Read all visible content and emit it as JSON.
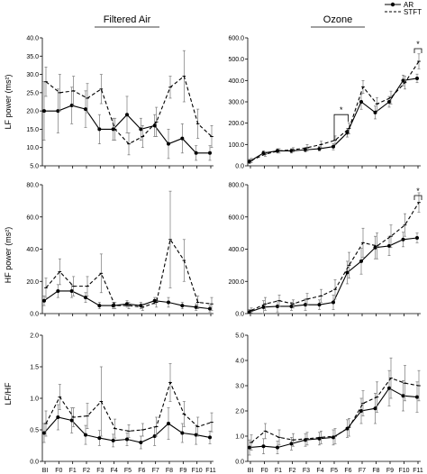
{
  "figure": {
    "col_titles": [
      "Filtered Air",
      "Ozone"
    ],
    "row_labels": [
      "LF power (ms²)",
      "HF power (ms²)",
      "LF/HF"
    ],
    "legend": {
      "ar_label": "AR",
      "stft_label": "STFT"
    },
    "significance_mark": "*"
  },
  "chart_data": [
    {
      "type": "line",
      "panel": "LF power - Filtered Air",
      "title": "Filtered Air",
      "ylabel": "LF power (ms²)",
      "xlabel": "",
      "categories": [
        "BI",
        "F0",
        "F1",
        "F2",
        "F3",
        "F4",
        "F5",
        "F6",
        "F7",
        "F8",
        "F9",
        "F10",
        "F11"
      ],
      "ylim": [
        5,
        40
      ],
      "yticks": [
        "5.0",
        "10.0",
        "15.0",
        "20.0",
        "25.0",
        "30.0",
        "35.0",
        "40.0"
      ],
      "series": [
        {
          "name": "AR",
          "style": "solid",
          "values": [
            20,
            20,
            21.5,
            20.5,
            15,
            15,
            19,
            15,
            16,
            11,
            12.5,
            8.5,
            8.5
          ],
          "err": [
            8,
            6,
            5,
            5,
            4,
            3,
            5,
            3,
            3,
            4,
            4,
            2,
            2
          ]
        },
        {
          "name": "STFT",
          "style": "dashed",
          "values": [
            28,
            25,
            25.5,
            23.5,
            26,
            15,
            11,
            13,
            17,
            26.5,
            29.5,
            16.5,
            13
          ],
          "err": [
            4,
            5,
            4,
            4,
            4,
            3,
            3,
            3,
            4,
            3,
            7,
            4,
            3
          ]
        }
      ]
    },
    {
      "type": "line",
      "panel": "LF power - Ozone",
      "title": "Ozone",
      "ylabel": "",
      "xlabel": "",
      "categories": [
        "BI",
        "F0",
        "F1",
        "F2",
        "F3",
        "F4",
        "F5",
        "F6",
        "F7",
        "F8",
        "F9",
        "F10",
        "F11"
      ],
      "ylim": [
        0,
        600
      ],
      "yticks": [
        "0.0",
        "100.0",
        "200.0",
        "300.0",
        "400.0",
        "500.0",
        "600.0"
      ],
      "series": [
        {
          "name": "AR",
          "style": "solid",
          "values": [
            20,
            60,
            70,
            70,
            75,
            80,
            90,
            155,
            300,
            250,
            300,
            400,
            410
          ],
          "err": [
            10,
            10,
            10,
            10,
            10,
            10,
            15,
            20,
            35,
            30,
            25,
            25,
            20
          ]
        },
        {
          "name": "STFT",
          "style": "dashed",
          "values": [
            25,
            55,
            70,
            75,
            85,
            100,
            120,
            175,
            370,
            290,
            320,
            390,
            490
          ],
          "err": [
            10,
            10,
            10,
            10,
            15,
            15,
            20,
            25,
            30,
            30,
            30,
            30,
            35
          ]
        }
      ],
      "annotations": [
        {
          "text": "*",
          "between": [
            "F5",
            "F6"
          ]
        },
        {
          "text": "*",
          "at": "F11"
        }
      ]
    },
    {
      "type": "line",
      "panel": "HF power - Filtered Air",
      "title": "",
      "ylabel": "HF power (ms²)",
      "xlabel": "",
      "categories": [
        "BI",
        "F0",
        "F1",
        "F2",
        "F3",
        "F4",
        "F5",
        "F6",
        "F7",
        "F8",
        "F9",
        "F10",
        "F11"
      ],
      "ylim": [
        0,
        80
      ],
      "yticks": [
        "0.0",
        "20.0",
        "40.0",
        "60.0",
        "80.0"
      ],
      "series": [
        {
          "name": "AR",
          "style": "solid",
          "values": [
            8,
            14,
            14,
            10,
            5,
            5,
            6,
            5,
            8,
            7,
            5,
            4,
            3
          ],
          "err": [
            3,
            4,
            4,
            3,
            2,
            2,
            2,
            2,
            2,
            3,
            2,
            2,
            2
          ]
        },
        {
          "name": "STFT",
          "style": "dashed",
          "values": [
            16,
            26,
            17,
            17,
            25,
            5,
            5,
            4,
            7,
            46,
            33,
            7,
            6
          ],
          "err": [
            6,
            8,
            6,
            6,
            12,
            2,
            2,
            2,
            3,
            30,
            13,
            4,
            4
          ]
        }
      ]
    },
    {
      "type": "line",
      "panel": "HF power - Ozone",
      "title": "",
      "ylabel": "",
      "xlabel": "",
      "categories": [
        "BI",
        "F0",
        "F1",
        "F2",
        "F3",
        "F4",
        "F5",
        "F6",
        "F7",
        "F8",
        "F9",
        "F10",
        "F11"
      ],
      "ylim": [
        0,
        800
      ],
      "yticks": [
        "0.0",
        "200.0",
        "400.0",
        "600.0",
        "800.0"
      ],
      "series": [
        {
          "name": "AR",
          "style": "solid",
          "values": [
            10,
            40,
            45,
            45,
            55,
            55,
            70,
            255,
            325,
            410,
            420,
            460,
            470
          ],
          "err": [
            15,
            40,
            35,
            25,
            35,
            30,
            45,
            70,
            80,
            70,
            60,
            45,
            30
          ]
        },
        {
          "name": "STFT",
          "style": "dashed",
          "values": [
            20,
            60,
            80,
            60,
            90,
            110,
            150,
            300,
            440,
            420,
            480,
            550,
            690
          ],
          "err": [
            15,
            40,
            35,
            25,
            35,
            40,
            60,
            80,
            90,
            80,
            70,
            70,
            60
          ]
        }
      ],
      "annotations": [
        {
          "text": "*",
          "at": "F11"
        }
      ]
    },
    {
      "type": "line",
      "panel": "LF/HF - Filtered Air",
      "title": "",
      "ylabel": "LF/HF",
      "xlabel": "",
      "categories": [
        "BI",
        "F0",
        "F1",
        "F2",
        "F3",
        "F4",
        "F5",
        "F6",
        "F7",
        "F8",
        "F9",
        "F10",
        "F11"
      ],
      "ylim": [
        0,
        2.0
      ],
      "yticks": [
        "0.0",
        "0.5",
        "1.0",
        "1.5",
        "2.0"
      ],
      "series": [
        {
          "name": "AR",
          "style": "solid",
          "values": [
            0.45,
            0.7,
            0.65,
            0.42,
            0.37,
            0.33,
            0.35,
            0.3,
            0.4,
            0.6,
            0.45,
            0.42,
            0.38
          ],
          "err": [
            0.15,
            0.2,
            0.2,
            0.15,
            0.12,
            0.1,
            0.1,
            0.1,
            0.15,
            0.25,
            0.15,
            0.15,
            0.1
          ]
        },
        {
          "name": "STFT",
          "style": "dashed",
          "values": [
            0.6,
            1.02,
            0.7,
            0.72,
            0.95,
            0.52,
            0.48,
            0.5,
            0.55,
            1.25,
            0.75,
            0.55,
            0.62
          ],
          "err": [
            0.2,
            0.2,
            0.15,
            0.2,
            0.55,
            0.15,
            0.1,
            0.1,
            0.15,
            0.3,
            0.2,
            0.15,
            0.15
          ]
        }
      ]
    },
    {
      "type": "line",
      "panel": "LF/HF - Ozone",
      "title": "",
      "ylabel": "",
      "xlabel": "",
      "categories": [
        "BI",
        "F0",
        "F1",
        "F2",
        "F3",
        "F4",
        "F5",
        "F6",
        "F7",
        "F8",
        "F9",
        "F10",
        "F11"
      ],
      "ylim": [
        0,
        5.0
      ],
      "yticks": [
        "0.0",
        "1.0",
        "2.0",
        "3.0",
        "4.0",
        "5.0"
      ],
      "series": [
        {
          "name": "AR",
          "style": "solid",
          "values": [
            0.55,
            0.6,
            0.55,
            0.7,
            0.85,
            0.9,
            0.95,
            1.3,
            2.0,
            2.1,
            2.9,
            2.6,
            2.55
          ],
          "err": [
            0.3,
            0.3,
            0.25,
            0.25,
            0.25,
            0.25,
            0.3,
            0.35,
            0.5,
            0.6,
            0.7,
            0.6,
            0.6
          ]
        },
        {
          "name": "STFT",
          "style": "dashed",
          "values": [
            0.75,
            1.2,
            0.95,
            0.85,
            0.9,
            0.95,
            1.0,
            1.35,
            2.3,
            2.55,
            3.3,
            3.1,
            3.0
          ],
          "err": [
            0.3,
            0.3,
            0.3,
            0.25,
            0.25,
            0.25,
            0.3,
            0.35,
            0.5,
            0.6,
            0.8,
            0.7,
            0.6
          ]
        }
      ]
    }
  ]
}
